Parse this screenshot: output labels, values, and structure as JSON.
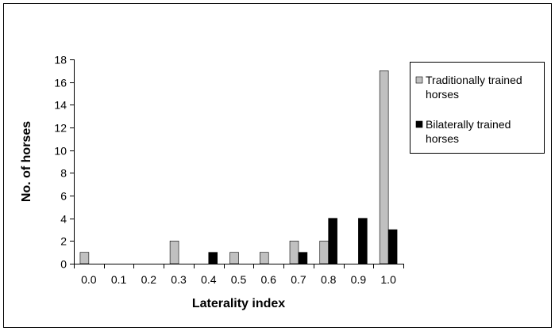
{
  "chart_data": {
    "type": "bar",
    "xlabel": "Laterality index",
    "ylabel": "No. of horses",
    "categories": [
      "0.0",
      "0.1",
      "0.2",
      "0.3",
      "0.4",
      "0.5",
      "0.6",
      "0.7",
      "0.8",
      "0.9",
      "1.0"
    ],
    "ylim": [
      0,
      18
    ],
    "yticks": [
      "0",
      "2",
      "4",
      "6",
      "8",
      "10",
      "12",
      "14",
      "16",
      "18"
    ],
    "grid": false,
    "legend_position": "right",
    "series": [
      {
        "name_lines": [
          "Traditionally trained",
          "horses"
        ],
        "color": "#c0c0c0",
        "values": [
          1,
          0,
          0,
          2,
          0,
          1,
          1,
          2,
          2,
          0,
          17
        ]
      },
      {
        "name_lines": [
          "Bilaterally trained",
          "horses"
        ],
        "color": "#000000",
        "values": [
          0,
          0,
          0,
          0,
          1,
          0,
          0,
          1,
          4,
          4,
          3
        ]
      }
    ]
  }
}
